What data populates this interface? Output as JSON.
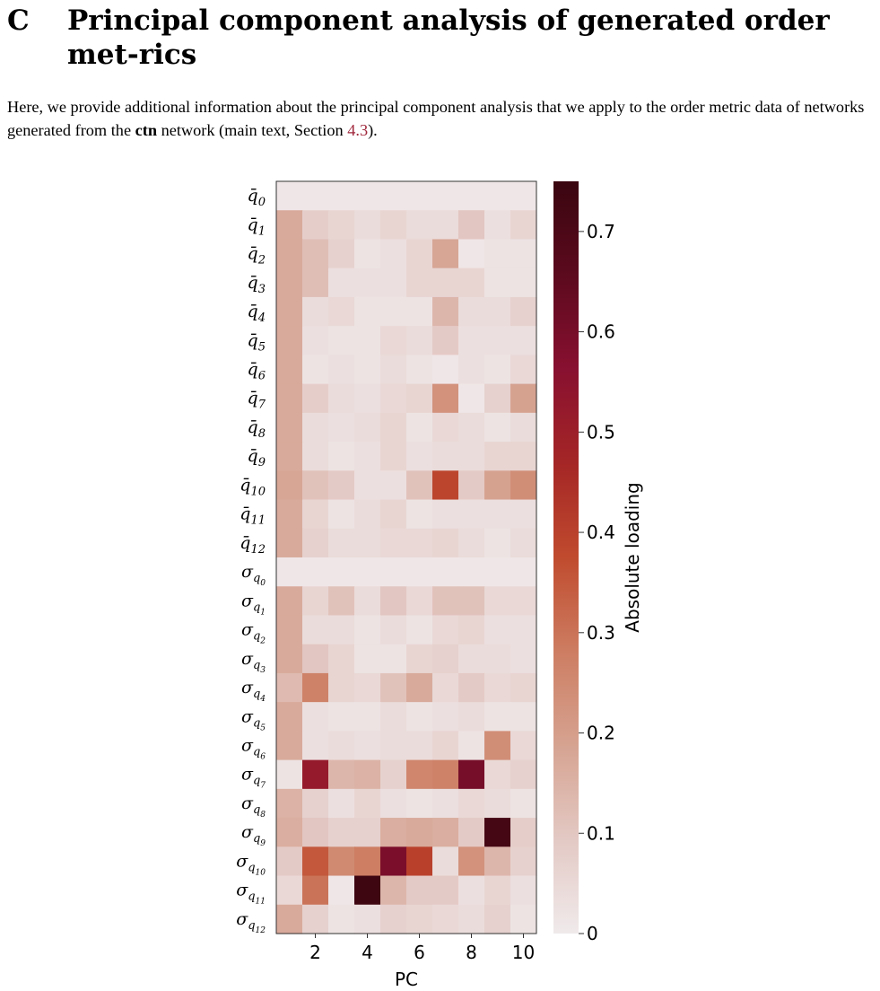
{
  "section": {
    "number": "C",
    "title": "Principal component analysis of generated order met-rics"
  },
  "intro": {
    "text1": "Here, we provide additional information about the principal component analysis that we apply to the order metric data of networks generated from the ",
    "bold": "ctn",
    "text2": " network (main text, Section ",
    "ref": "4.3",
    "text3": ")."
  },
  "chart_data": {
    "type": "heatmap",
    "xlabel": "PC",
    "x_ticks": [
      "2",
      "4",
      "6",
      "8",
      "10"
    ],
    "columns": [
      1,
      2,
      3,
      4,
      5,
      6,
      7,
      8,
      9,
      10
    ],
    "colorbar_label": "Absolute loading",
    "colorbar_ticks": [
      "0",
      "0.1",
      "0.2",
      "0.3",
      "0.4",
      "0.5",
      "0.6",
      "0.7"
    ],
    "clim": [
      0,
      0.75
    ],
    "colormap": [
      "#f0eaeb",
      "#e3c9c4",
      "#d6a391",
      "#cd7d62",
      "#c04b2e",
      "#a52626",
      "#881030",
      "#5c0a1e",
      "#3a0610"
    ],
    "rows": [
      {
        "base": "q̄",
        "sub": "0"
      },
      {
        "base": "q̄",
        "sub": "1"
      },
      {
        "base": "q̄",
        "sub": "2"
      },
      {
        "base": "q̄",
        "sub": "3"
      },
      {
        "base": "q̄",
        "sub": "4"
      },
      {
        "base": "q̄",
        "sub": "5"
      },
      {
        "base": "q̄",
        "sub": "6"
      },
      {
        "base": "q̄",
        "sub": "7"
      },
      {
        "base": "q̄",
        "sub": "8"
      },
      {
        "base": "q̄",
        "sub": "9"
      },
      {
        "base": "q̄",
        "sub": "10"
      },
      {
        "base": "q̄",
        "sub": "11"
      },
      {
        "base": "q̄",
        "sub": "12"
      },
      {
        "base": "σ",
        "sub": "q",
        "subsub": "0"
      },
      {
        "base": "σ",
        "sub": "q",
        "subsub": "1"
      },
      {
        "base": "σ",
        "sub": "q",
        "subsub": "2"
      },
      {
        "base": "σ",
        "sub": "q",
        "subsub": "3"
      },
      {
        "base": "σ",
        "sub": "q",
        "subsub": "4"
      },
      {
        "base": "σ",
        "sub": "q",
        "subsub": "5"
      },
      {
        "base": "σ",
        "sub": "q",
        "subsub": "6"
      },
      {
        "base": "σ",
        "sub": "q",
        "subsub": "7"
      },
      {
        "base": "σ",
        "sub": "q",
        "subsub": "8"
      },
      {
        "base": "σ",
        "sub": "q",
        "subsub": "9"
      },
      {
        "base": "σ",
        "sub": "q",
        "subsub": "10"
      },
      {
        "base": "σ",
        "sub": "q",
        "subsub": "11"
      },
      {
        "base": "σ",
        "sub": "q",
        "subsub": "12"
      }
    ],
    "values": [
      [
        0.01,
        0.01,
        0.01,
        0.01,
        0.01,
        0.01,
        0.01,
        0.01,
        0.01,
        0.01
      ],
      [
        0.17,
        0.08,
        0.06,
        0.04,
        0.06,
        0.04,
        0.04,
        0.1,
        0.03,
        0.06
      ],
      [
        0.17,
        0.12,
        0.07,
        0.02,
        0.03,
        0.06,
        0.18,
        0.01,
        0.02,
        0.02
      ],
      [
        0.17,
        0.12,
        0.03,
        0.03,
        0.03,
        0.06,
        0.06,
        0.06,
        0.02,
        0.02
      ],
      [
        0.17,
        0.04,
        0.05,
        0.02,
        0.02,
        0.02,
        0.14,
        0.04,
        0.04,
        0.07
      ],
      [
        0.17,
        0.03,
        0.02,
        0.02,
        0.05,
        0.04,
        0.09,
        0.03,
        0.03,
        0.03
      ],
      [
        0.17,
        0.02,
        0.03,
        0.02,
        0.04,
        0.02,
        0.01,
        0.03,
        0.02,
        0.05
      ],
      [
        0.17,
        0.08,
        0.04,
        0.03,
        0.05,
        0.06,
        0.23,
        0.01,
        0.07,
        0.19
      ],
      [
        0.17,
        0.04,
        0.03,
        0.04,
        0.06,
        0.02,
        0.05,
        0.04,
        0.02,
        0.04
      ],
      [
        0.17,
        0.04,
        0.02,
        0.03,
        0.06,
        0.03,
        0.04,
        0.04,
        0.06,
        0.06
      ],
      [
        0.18,
        0.11,
        0.09,
        0.03,
        0.03,
        0.11,
        0.39,
        0.09,
        0.19,
        0.24
      ],
      [
        0.17,
        0.06,
        0.02,
        0.04,
        0.06,
        0.02,
        0.03,
        0.03,
        0.03,
        0.03
      ],
      [
        0.17,
        0.07,
        0.04,
        0.04,
        0.05,
        0.05,
        0.06,
        0.04,
        0.02,
        0.04
      ],
      [
        0.01,
        0.01,
        0.01,
        0.01,
        0.01,
        0.01,
        0.01,
        0.01,
        0.01,
        0.01
      ],
      [
        0.17,
        0.06,
        0.11,
        0.04,
        0.1,
        0.05,
        0.11,
        0.11,
        0.05,
        0.05
      ],
      [
        0.17,
        0.04,
        0.04,
        0.02,
        0.04,
        0.02,
        0.05,
        0.06,
        0.03,
        0.03
      ],
      [
        0.17,
        0.1,
        0.06,
        0.02,
        0.02,
        0.06,
        0.07,
        0.04,
        0.04,
        0.03
      ],
      [
        0.13,
        0.27,
        0.06,
        0.05,
        0.11,
        0.17,
        0.05,
        0.09,
        0.05,
        0.06
      ],
      [
        0.17,
        0.03,
        0.02,
        0.02,
        0.04,
        0.02,
        0.03,
        0.04,
        0.02,
        0.02
      ],
      [
        0.17,
        0.03,
        0.04,
        0.03,
        0.04,
        0.04,
        0.06,
        0.02,
        0.24,
        0.05
      ],
      [
        0.02,
        0.52,
        0.14,
        0.15,
        0.07,
        0.26,
        0.27,
        0.6,
        0.05,
        0.07
      ],
      [
        0.15,
        0.07,
        0.03,
        0.06,
        0.03,
        0.02,
        0.03,
        0.05,
        0.04,
        0.02
      ],
      [
        0.16,
        0.1,
        0.07,
        0.07,
        0.16,
        0.17,
        0.16,
        0.09,
        0.72,
        0.08
      ],
      [
        0.09,
        0.35,
        0.25,
        0.28,
        0.59,
        0.4,
        0.04,
        0.23,
        0.14,
        0.07
      ],
      [
        0.05,
        0.3,
        0.01,
        0.74,
        0.14,
        0.09,
        0.09,
        0.03,
        0.06,
        0.03
      ],
      [
        0.17,
        0.07,
        0.02,
        0.03,
        0.07,
        0.06,
        0.05,
        0.04,
        0.07,
        0.02
      ]
    ]
  }
}
